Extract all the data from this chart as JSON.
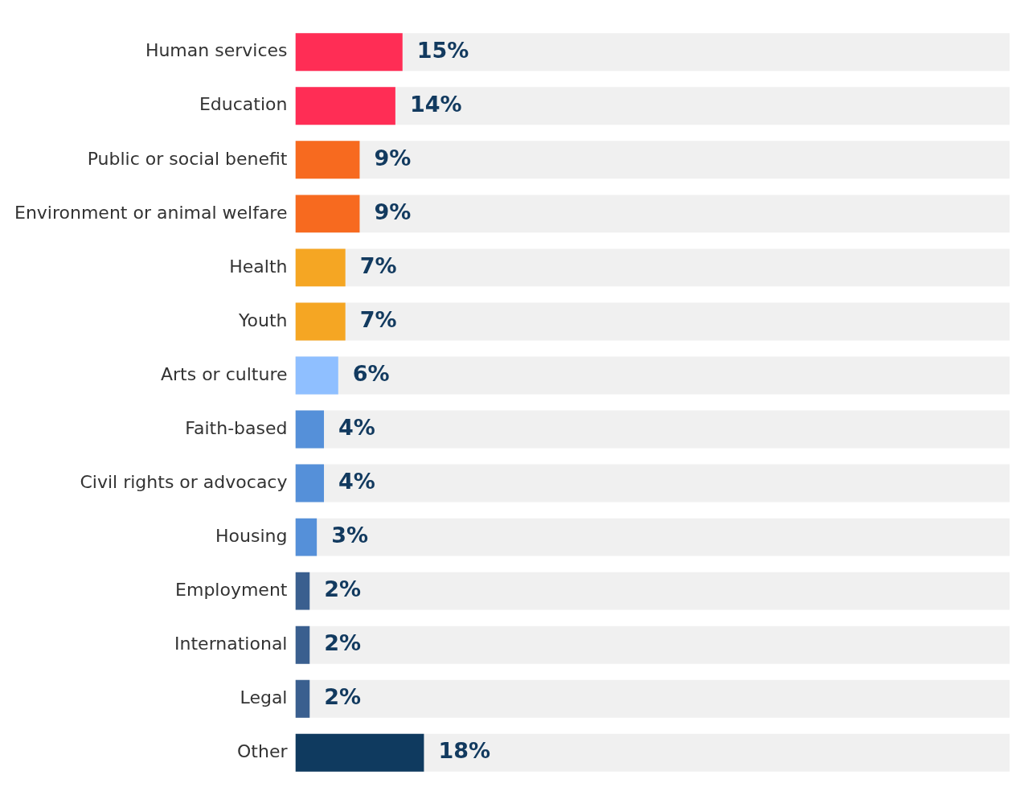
{
  "chart_data": {
    "type": "bar",
    "orientation": "horizontal",
    "categories": [
      "Human services",
      "Education",
      "Public or social benefit",
      "Environment or animal welfare",
      "Health",
      "Youth",
      "Arts or culture",
      "Faith-based",
      "Civil rights or advocacy",
      "Housing",
      "Employment",
      "International",
      "Legal",
      "Other"
    ],
    "values": [
      15,
      14,
      9,
      9,
      7,
      7,
      6,
      4,
      4,
      3,
      2,
      2,
      2,
      18
    ],
    "colors": [
      "#ff2d55",
      "#ff2d55",
      "#f76a1f",
      "#f76a1f",
      "#f5a623",
      "#f5a623",
      "#8fbfff",
      "#5590d9",
      "#5590d9",
      "#5590d9",
      "#3a5f8f",
      "#3a5f8f",
      "#3a5f8f",
      "#0f3a5f"
    ],
    "value_labels": [
      "15%",
      "14%",
      "9%",
      "9%",
      "7%",
      "7%",
      "6%",
      "4%",
      "4%",
      "3%",
      "2%",
      "2%",
      "2%",
      "18%"
    ],
    "xlim": [
      0,
      100
    ],
    "tick_labels": "y",
    "grid": false,
    "legend": false
  }
}
